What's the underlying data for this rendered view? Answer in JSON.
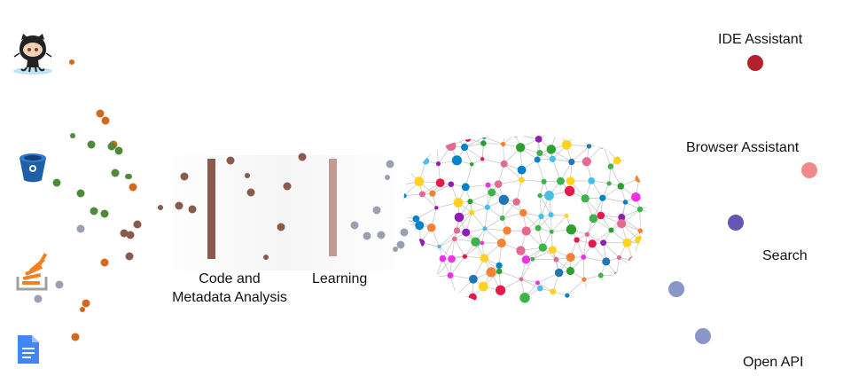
{
  "stages": [
    {
      "id": "code",
      "lines": [
        "Code and",
        "Metadata Analysis"
      ],
      "color": "#8a5a4e"
    },
    {
      "id": "learning",
      "lines": [
        "Learning"
      ],
      "color": "#c39a94"
    }
  ],
  "outputs": [
    {
      "id": "ide",
      "label": "IDE Assistant",
      "color": "#b3202e"
    },
    {
      "id": "browser",
      "label": "Browser Assistant",
      "color": "#f08a8a"
    },
    {
      "id": "search",
      "label": "Search",
      "color": "#6458b5"
    },
    {
      "id": "api",
      "label": "Open API",
      "color": "#8996c8"
    }
  ],
  "sources": [
    {
      "id": "github",
      "icon": "github-octocat-icon"
    },
    {
      "id": "bitbucket",
      "icon": "bitbucket-icon"
    },
    {
      "id": "stackoverflow",
      "icon": "stackoverflow-icon"
    },
    {
      "id": "google-docs",
      "icon": "google-docs-icon"
    }
  ],
  "particle_colors": {
    "orange": "#d2691e",
    "green": "#4e8a3a",
    "brown": "#8a5a4e",
    "gray": "#9aa0ae"
  },
  "brain": {
    "icon": "brain-network-icon",
    "node_colors": [
      "#e6194b",
      "#3cb44b",
      "#0082c8",
      "#f58231",
      "#911eb4",
      "#46c0e6",
      "#f032e6",
      "#ffd21f",
      "#e46a8f",
      "#1f77b4",
      "#2ca02c"
    ]
  }
}
